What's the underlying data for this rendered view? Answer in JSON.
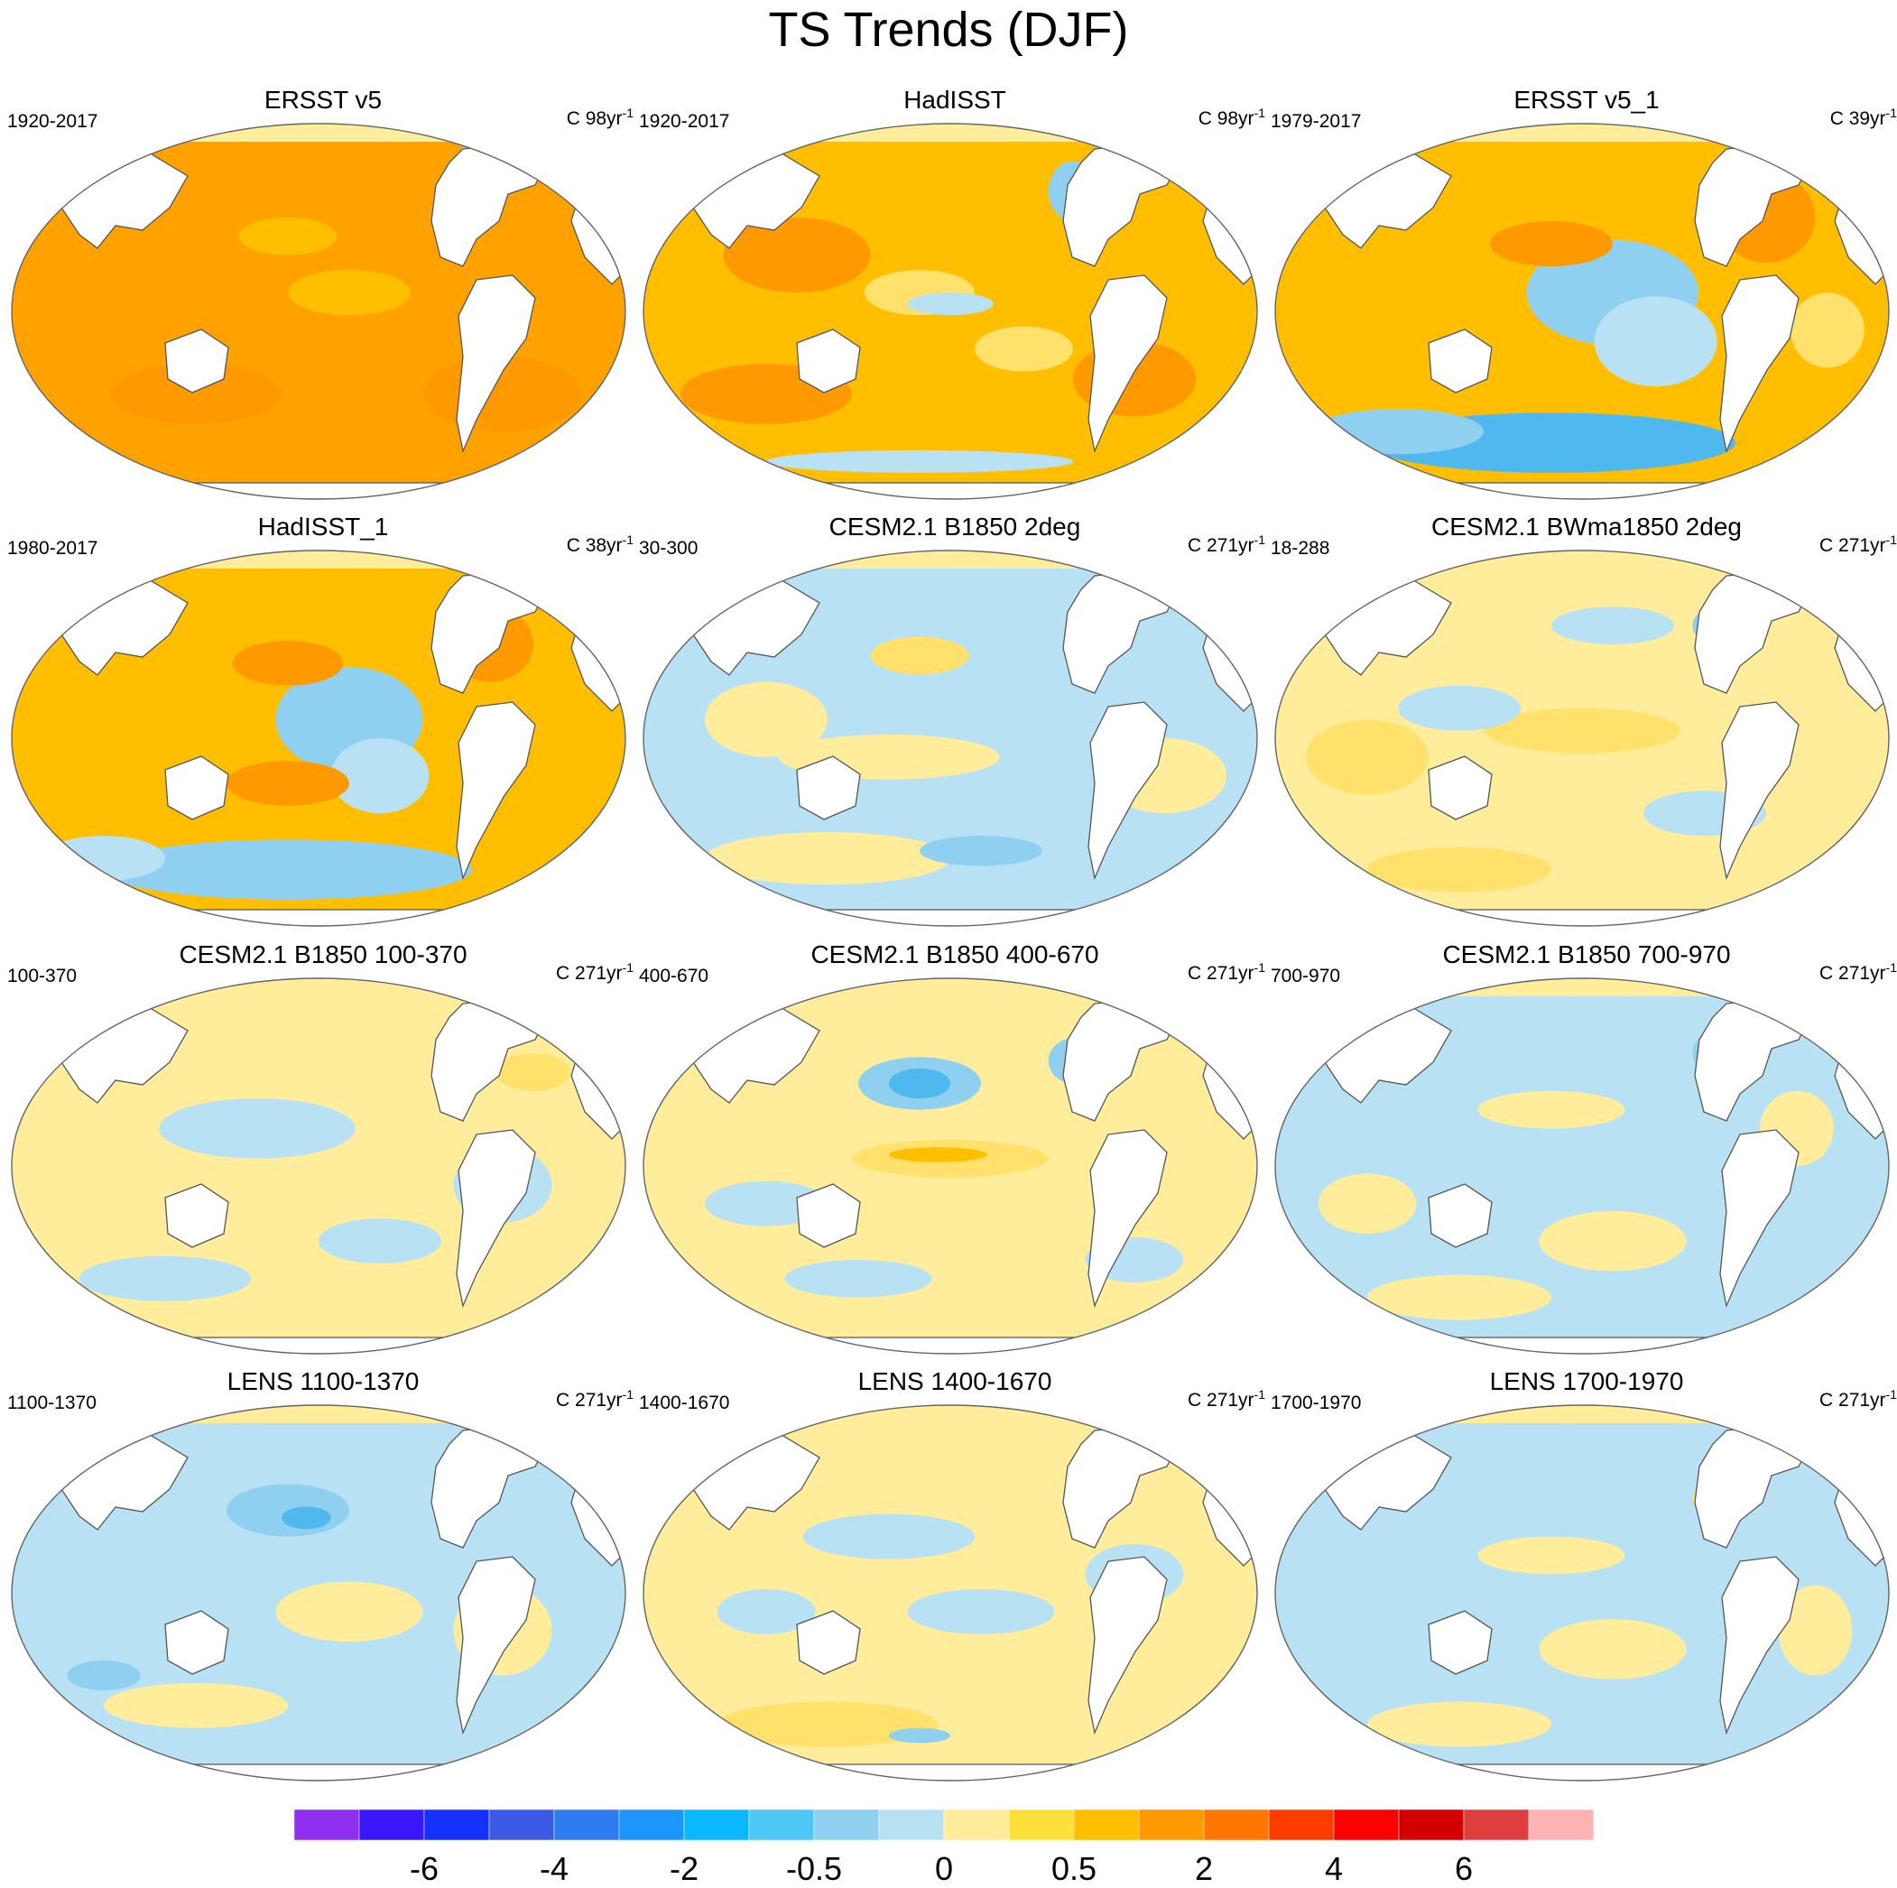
{
  "title": "TS Trends (DJF)",
  "panels": [
    {
      "title": "ERSST v5",
      "period": "1920-2017",
      "units_prefix": "C",
      "units_value": "98yr",
      "units_exp": "-1",
      "bg": "#ffa200",
      "blobs": [
        [
          "#ff9900",
          0.3,
          0.72,
          0.14,
          0.08
        ],
        [
          "#ff9900",
          0.8,
          0.72,
          0.13,
          0.1
        ],
        [
          "#ffbf00",
          0.55,
          0.45,
          0.1,
          0.06
        ],
        [
          "#8fd0f0",
          0.76,
          0.14,
          0.04,
          0.1
        ],
        [
          "#4fb8ee",
          0.76,
          0.15,
          0.02,
          0.05
        ],
        [
          "#ffbf00",
          0.45,
          0.3,
          0.08,
          0.05
        ]
      ]
    },
    {
      "title": "HadISST",
      "period": "1920-2017",
      "units_prefix": "C",
      "units_value": "98yr",
      "units_exp": "-1",
      "bg": "#ffbf00",
      "blobs": [
        [
          "#ff9900",
          0.25,
          0.35,
          0.12,
          0.1
        ],
        [
          "#ff9900",
          0.2,
          0.72,
          0.14,
          0.08
        ],
        [
          "#ff9900",
          0.8,
          0.68,
          0.1,
          0.1
        ],
        [
          "#ffe16c",
          0.45,
          0.45,
          0.09,
          0.06
        ],
        [
          "#b9e1f4",
          0.5,
          0.48,
          0.07,
          0.03
        ],
        [
          "#ffe16c",
          0.62,
          0.6,
          0.08,
          0.06
        ],
        [
          "#8fd0f0",
          0.7,
          0.18,
          0.04,
          0.08
        ],
        [
          "#b9e1f4",
          0.45,
          0.9,
          0.25,
          0.03
        ]
      ]
    },
    {
      "title": "ERSST v5_1",
      "period": "1979-2017",
      "units_prefix": "C",
      "units_value": "39yr",
      "units_exp": "-1",
      "bg": "#ffbf00",
      "blobs": [
        [
          "#8fd0f0",
          0.55,
          0.45,
          0.14,
          0.14
        ],
        [
          "#b9e1f4",
          0.62,
          0.58,
          0.1,
          0.12
        ],
        [
          "#4fb8ee",
          0.45,
          0.85,
          0.3,
          0.08
        ],
        [
          "#8fd0f0",
          0.2,
          0.82,
          0.14,
          0.06
        ],
        [
          "#ff9900",
          0.45,
          0.32,
          0.1,
          0.06
        ],
        [
          "#ff9900",
          0.8,
          0.25,
          0.08,
          0.12
        ],
        [
          "#ffe16c",
          0.9,
          0.55,
          0.06,
          0.1
        ]
      ]
    },
    {
      "title": "HadISST_1",
      "period": "1980-2017",
      "units_prefix": "C",
      "units_value": "38yr",
      "units_exp": "-1",
      "bg": "#ffbf00",
      "blobs": [
        [
          "#8fd0f0",
          0.55,
          0.45,
          0.12,
          0.14
        ],
        [
          "#b9e1f4",
          0.6,
          0.6,
          0.08,
          0.1
        ],
        [
          "#8fd0f0",
          0.45,
          0.85,
          0.3,
          0.08
        ],
        [
          "#b9e1f4",
          0.15,
          0.82,
          0.1,
          0.06
        ],
        [
          "#ff9900",
          0.45,
          0.3,
          0.09,
          0.06
        ],
        [
          "#ff9900",
          0.78,
          0.25,
          0.07,
          0.1
        ],
        [
          "#ff9900",
          0.45,
          0.62,
          0.1,
          0.06
        ]
      ]
    },
    {
      "title": "CESM2.1 B1850 2deg",
      "period": "30-300",
      "units_prefix": "C",
      "units_value": "271yr",
      "units_exp": "-1",
      "bg": "#b9e1f4",
      "blobs": [
        [
          "#ffed9c",
          0.4,
          0.55,
          0.18,
          0.06
        ],
        [
          "#ffed9c",
          0.2,
          0.45,
          0.1,
          0.1
        ],
        [
          "#ffed9c",
          0.3,
          0.82,
          0.2,
          0.07
        ],
        [
          "#ffed9c",
          0.85,
          0.6,
          0.1,
          0.1
        ],
        [
          "#ffe16c",
          0.45,
          0.28,
          0.08,
          0.05
        ],
        [
          "#4fb8ee",
          0.74,
          0.18,
          0.04,
          0.05
        ],
        [
          "#8fd0f0",
          0.55,
          0.8,
          0.1,
          0.04
        ]
      ]
    },
    {
      "title": "CESM2.1 BWma1850 2deg",
      "period": "18-288",
      "units_prefix": "C",
      "units_value": "271yr",
      "units_exp": "-1",
      "bg": "#ffed9c",
      "blobs": [
        [
          "#ffe16c",
          0.5,
          0.48,
          0.16,
          0.06
        ],
        [
          "#ffe16c",
          0.15,
          0.55,
          0.1,
          0.1
        ],
        [
          "#ffe16c",
          0.3,
          0.85,
          0.15,
          0.06
        ],
        [
          "#b9e1f4",
          0.3,
          0.42,
          0.1,
          0.06
        ],
        [
          "#b9e1f4",
          0.7,
          0.7,
          0.1,
          0.06
        ],
        [
          "#8fd0f0",
          0.72,
          0.2,
          0.04,
          0.05
        ],
        [
          "#b9e1f4",
          0.55,
          0.2,
          0.1,
          0.05
        ]
      ]
    },
    {
      "title": "CESM2.1 B1850 100-370",
      "period": "100-370",
      "units_prefix": "C",
      "units_value": "271yr",
      "units_exp": "-1",
      "bg": "#ffed9c",
      "blobs": [
        [
          "#b9e1f4",
          0.4,
          0.4,
          0.16,
          0.08
        ],
        [
          "#b9e1f4",
          0.25,
          0.8,
          0.14,
          0.06
        ],
        [
          "#b9e1f4",
          0.6,
          0.7,
          0.1,
          0.06
        ],
        [
          "#b9e1f4",
          0.8,
          0.55,
          0.08,
          0.1
        ],
        [
          "#ff9900",
          0.74,
          0.18,
          0.04,
          0.06
        ],
        [
          "#ffe16c",
          0.85,
          0.25,
          0.06,
          0.05
        ]
      ]
    },
    {
      "title": "CESM2.1 B1850 400-670",
      "period": "400-670",
      "units_prefix": "C",
      "units_value": "271yr",
      "units_exp": "-1",
      "bg": "#ffed9c",
      "blobs": [
        [
          "#8fd0f0",
          0.45,
          0.28,
          0.1,
          0.07
        ],
        [
          "#4fb8ee",
          0.45,
          0.28,
          0.05,
          0.04
        ],
        [
          "#ffe16c",
          0.5,
          0.48,
          0.16,
          0.05
        ],
        [
          "#ffbf00",
          0.48,
          0.47,
          0.08,
          0.02
        ],
        [
          "#b9e1f4",
          0.2,
          0.6,
          0.1,
          0.06
        ],
        [
          "#b9e1f4",
          0.35,
          0.8,
          0.12,
          0.05
        ],
        [
          "#8fd0f0",
          0.7,
          0.22,
          0.04,
          0.06
        ],
        [
          "#b9e1f4",
          0.8,
          0.75,
          0.08,
          0.06
        ]
      ]
    },
    {
      "title": "CESM2.1 B1850 700-970",
      "period": "700-970",
      "units_prefix": "C",
      "units_value": "271yr",
      "units_exp": "-1",
      "bg": "#b9e1f4",
      "blobs": [
        [
          "#ffed9c",
          0.45,
          0.35,
          0.12,
          0.05
        ],
        [
          "#ffed9c",
          0.55,
          0.7,
          0.12,
          0.08
        ],
        [
          "#ffed9c",
          0.3,
          0.85,
          0.15,
          0.06
        ],
        [
          "#ffed9c",
          0.85,
          0.4,
          0.06,
          0.1
        ],
        [
          "#ffed9c",
          0.15,
          0.6,
          0.08,
          0.08
        ],
        [
          "#8fd0f0",
          0.72,
          0.2,
          0.04,
          0.06
        ]
      ]
    },
    {
      "title": "LENS 1100-1370",
      "period": "1100-1370",
      "units_prefix": "C",
      "units_value": "271yr",
      "units_exp": "-1",
      "bg": "#b9e1f4",
      "blobs": [
        [
          "#8fd0f0",
          0.45,
          0.28,
          0.1,
          0.07
        ],
        [
          "#4fb8ee",
          0.48,
          0.3,
          0.04,
          0.03
        ],
        [
          "#ffed9c",
          0.55,
          0.55,
          0.12,
          0.08
        ],
        [
          "#ffed9c",
          0.3,
          0.8,
          0.15,
          0.06
        ],
        [
          "#ffed9c",
          0.8,
          0.6,
          0.08,
          0.12
        ],
        [
          "#8fd0f0",
          0.15,
          0.72,
          0.06,
          0.04
        ],
        [
          "#ffed9c",
          0.75,
          0.18,
          0.04,
          0.05
        ]
      ]
    },
    {
      "title": "LENS 1400-1670",
      "period": "1400-1670",
      "units_prefix": "C",
      "units_value": "271yr",
      "units_exp": "-1",
      "bg": "#ffed9c",
      "blobs": [
        [
          "#b9e1f4",
          0.4,
          0.35,
          0.14,
          0.06
        ],
        [
          "#b9e1f4",
          0.55,
          0.55,
          0.12,
          0.06
        ],
        [
          "#b9e1f4",
          0.8,
          0.45,
          0.08,
          0.08
        ],
        [
          "#ffe16c",
          0.3,
          0.85,
          0.18,
          0.06
        ],
        [
          "#8fd0f0",
          0.45,
          0.88,
          0.05,
          0.02
        ],
        [
          "#b9e1f4",
          0.2,
          0.55,
          0.08,
          0.06
        ]
      ]
    },
    {
      "title": "LENS 1700-1970",
      "period": "1700-1970",
      "units_prefix": "C",
      "units_value": "271yr",
      "units_exp": "-1",
      "bg": "#b9e1f4",
      "blobs": [
        [
          "#ffed9c",
          0.45,
          0.4,
          0.12,
          0.05
        ],
        [
          "#ffed9c",
          0.55,
          0.65,
          0.12,
          0.08
        ],
        [
          "#ffed9c",
          0.3,
          0.85,
          0.15,
          0.06
        ],
        [
          "#ffed9c",
          0.88,
          0.6,
          0.06,
          0.12
        ],
        [
          "#8fd0f0",
          0.76,
          0.2,
          0.03,
          0.05
        ],
        [
          "#ffe16c",
          0.72,
          0.25,
          0.04,
          0.04
        ]
      ]
    }
  ],
  "colorbar": {
    "colors": [
      "#8f2fef",
      "#3a17ff",
      "#1630ff",
      "#3c5ae6",
      "#2f7bf0",
      "#1c96fc",
      "#0bb8ff",
      "#4fc7f5",
      "#8fd0f0",
      "#b9e1f4",
      "#ffed9c",
      "#ffe03a",
      "#ffbf00",
      "#ff9900",
      "#ff7700",
      "#ff3d00",
      "#ff0000",
      "#d40000",
      "#de3e3e",
      "#ffb3b3"
    ],
    "tick_labels": [
      "-6",
      "-4",
      "-2",
      "-0.5",
      "0",
      "0.5",
      "2",
      "4",
      "6"
    ]
  }
}
